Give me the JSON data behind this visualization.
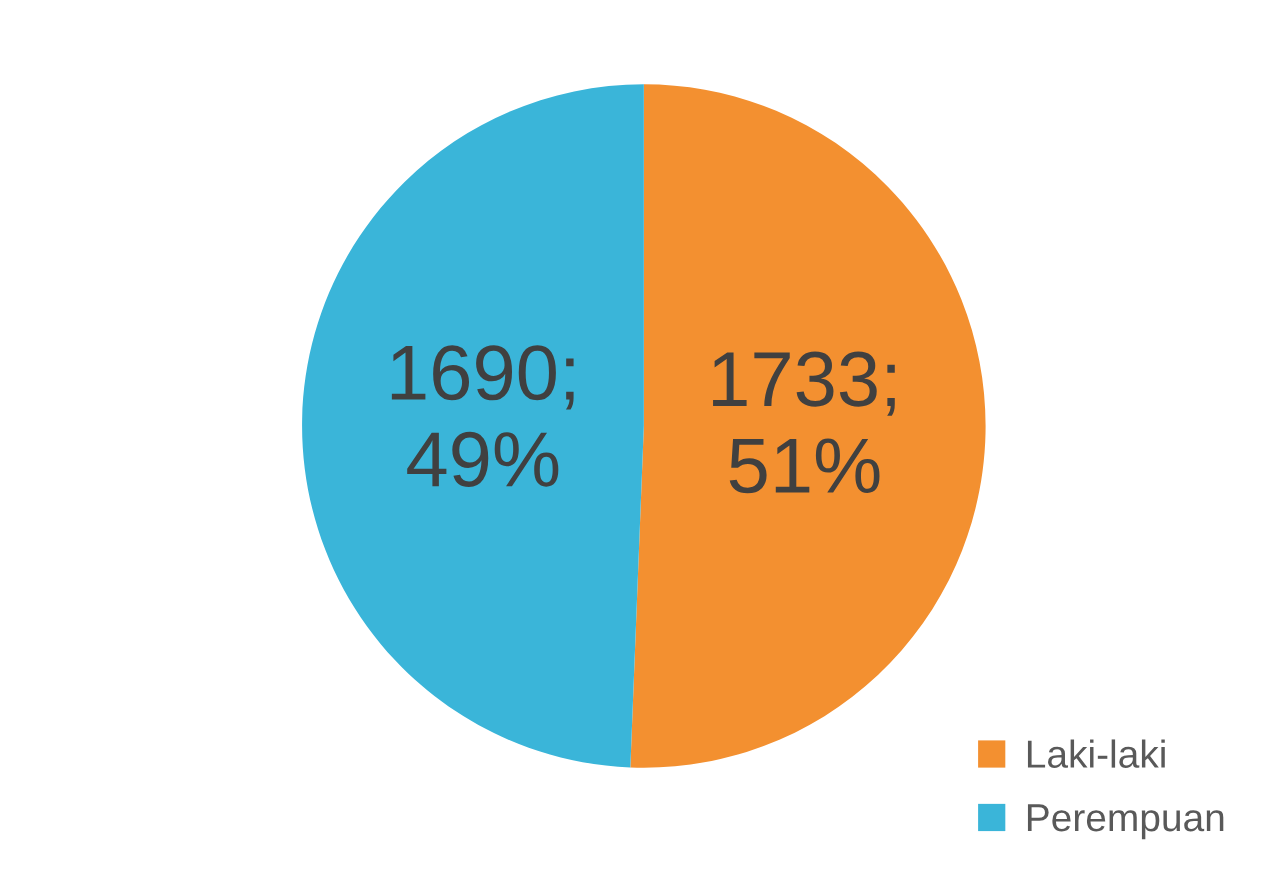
{
  "chart_data": {
    "type": "pie",
    "categories": [
      "Laki-laki",
      "Perempuan"
    ],
    "values": [
      1733,
      1690
    ],
    "colors": [
      "#f39030",
      "#3ab5d9"
    ],
    "value_labels": [
      "1733;\n51%",
      "1690;\n49%"
    ],
    "legend": "bottom right"
  }
}
